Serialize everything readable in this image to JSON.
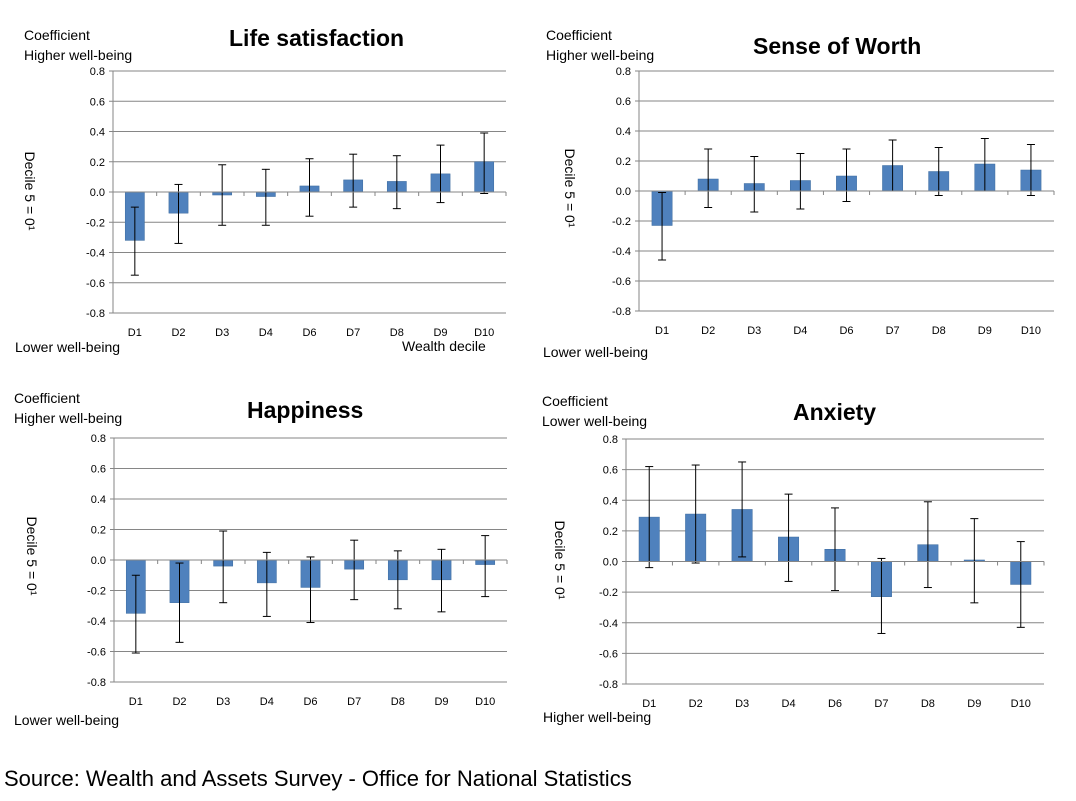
{
  "source": "Source: Wealth and Assets Survey - Office for National Statistics",
  "colors": {
    "bar": "#4F81BD",
    "bar_edge": "#3E6C9F",
    "grid": "#868686",
    "errorbar": "#000000"
  },
  "chart_data": [
    {
      "type": "bar",
      "title": "Life satisfaction",
      "coefficient_label": "Coefficient",
      "top_label": "Higher well-being",
      "bottom_label": "Lower well-being",
      "ylabel": "Decile 5 = 0¹",
      "xlabel": "Wealth decile",
      "ylim": [
        -0.8,
        0.8
      ],
      "yticks": [
        "0.8",
        "0.6",
        "0.4",
        "0.2",
        "0.0",
        "-0.2",
        "-0.4",
        "-0.6",
        "-0.8"
      ],
      "categories": [
        "D1",
        "D2",
        "D3",
        "D4",
        "D6",
        "D7",
        "D8",
        "D9",
        "D10"
      ],
      "values": [
        -0.32,
        -0.14,
        -0.02,
        -0.03,
        0.04,
        0.08,
        0.07,
        0.12,
        0.2
      ],
      "error_low": [
        -0.55,
        -0.34,
        -0.22,
        -0.22,
        -0.16,
        -0.1,
        -0.11,
        -0.07,
        -0.01
      ],
      "error_high": [
        -0.1,
        0.05,
        0.18,
        0.15,
        0.22,
        0.25,
        0.24,
        0.31,
        0.39
      ],
      "grid": true
    },
    {
      "type": "bar",
      "title": "Sense of Worth",
      "coefficient_label": "Coefficient",
      "top_label": "Higher well-being",
      "bottom_label": "Lower well-being",
      "ylabel": "Decile 5 = 0¹",
      "xlabel": "",
      "ylim": [
        -0.8,
        0.8
      ],
      "yticks": [
        "0.8",
        "0.6",
        "0.4",
        "0.2",
        "0.0",
        "-0.2",
        "-0.4",
        "-0.6",
        "-0.8"
      ],
      "categories": [
        "D1",
        "D2",
        "D3",
        "D4",
        "D6",
        "D7",
        "D8",
        "D9",
        "D10"
      ],
      "values": [
        -0.23,
        0.08,
        0.05,
        0.07,
        0.1,
        0.17,
        0.13,
        0.18,
        0.14
      ],
      "error_low": [
        -0.46,
        -0.11,
        -0.14,
        -0.12,
        -0.07,
        0.0,
        -0.03,
        0.0,
        -0.03
      ],
      "error_high": [
        -0.01,
        0.28,
        0.23,
        0.25,
        0.28,
        0.34,
        0.29,
        0.35,
        0.31
      ],
      "grid": true
    },
    {
      "type": "bar",
      "title": "Happiness",
      "coefficient_label": "Coefficient",
      "top_label": "Higher well-being",
      "bottom_label": "Lower well-being",
      "ylabel": "Decile 5 = 0¹",
      "xlabel": "",
      "ylim": [
        -0.8,
        0.8
      ],
      "yticks": [
        "0.8",
        "0.6",
        "0.4",
        "0.2",
        "0.0",
        "-0.2",
        "-0.4",
        "-0.6",
        "-0.8"
      ],
      "categories": [
        "D1",
        "D2",
        "D3",
        "D4",
        "D6",
        "D7",
        "D8",
        "D9",
        "D10"
      ],
      "values": [
        -0.35,
        -0.28,
        -0.04,
        -0.15,
        -0.18,
        -0.06,
        -0.13,
        -0.13,
        -0.03
      ],
      "error_low": [
        -0.61,
        -0.54,
        -0.28,
        -0.37,
        -0.41,
        -0.26,
        -0.32,
        -0.34,
        -0.24
      ],
      "error_high": [
        -0.1,
        -0.02,
        0.19,
        0.05,
        0.02,
        0.13,
        0.06,
        0.07,
        0.16
      ],
      "grid": true
    },
    {
      "type": "bar",
      "title": "Anxiety",
      "coefficient_label": "Coefficient",
      "top_label": "Lower well-being",
      "bottom_label": "Higher well-being",
      "ylabel": "Decile 5 = 0¹",
      "xlabel": "",
      "ylim": [
        -0.8,
        0.8
      ],
      "yticks": [
        "0.8",
        "0.6",
        "0.4",
        "0.2",
        "0.0",
        "-0.2",
        "-0.4",
        "-0.6",
        "-0.8"
      ],
      "categories": [
        "D1",
        "D2",
        "D3",
        "D4",
        "D6",
        "D7",
        "D8",
        "D9",
        "D10"
      ],
      "values": [
        0.29,
        0.31,
        0.34,
        0.16,
        0.08,
        -0.23,
        0.11,
        0.01,
        -0.15
      ],
      "error_low": [
        -0.04,
        -0.01,
        0.03,
        -0.13,
        -0.19,
        -0.47,
        -0.17,
        -0.27,
        -0.43
      ],
      "error_high": [
        0.62,
        0.63,
        0.65,
        0.44,
        0.35,
        0.02,
        0.39,
        0.28,
        0.13
      ],
      "grid": true
    }
  ]
}
